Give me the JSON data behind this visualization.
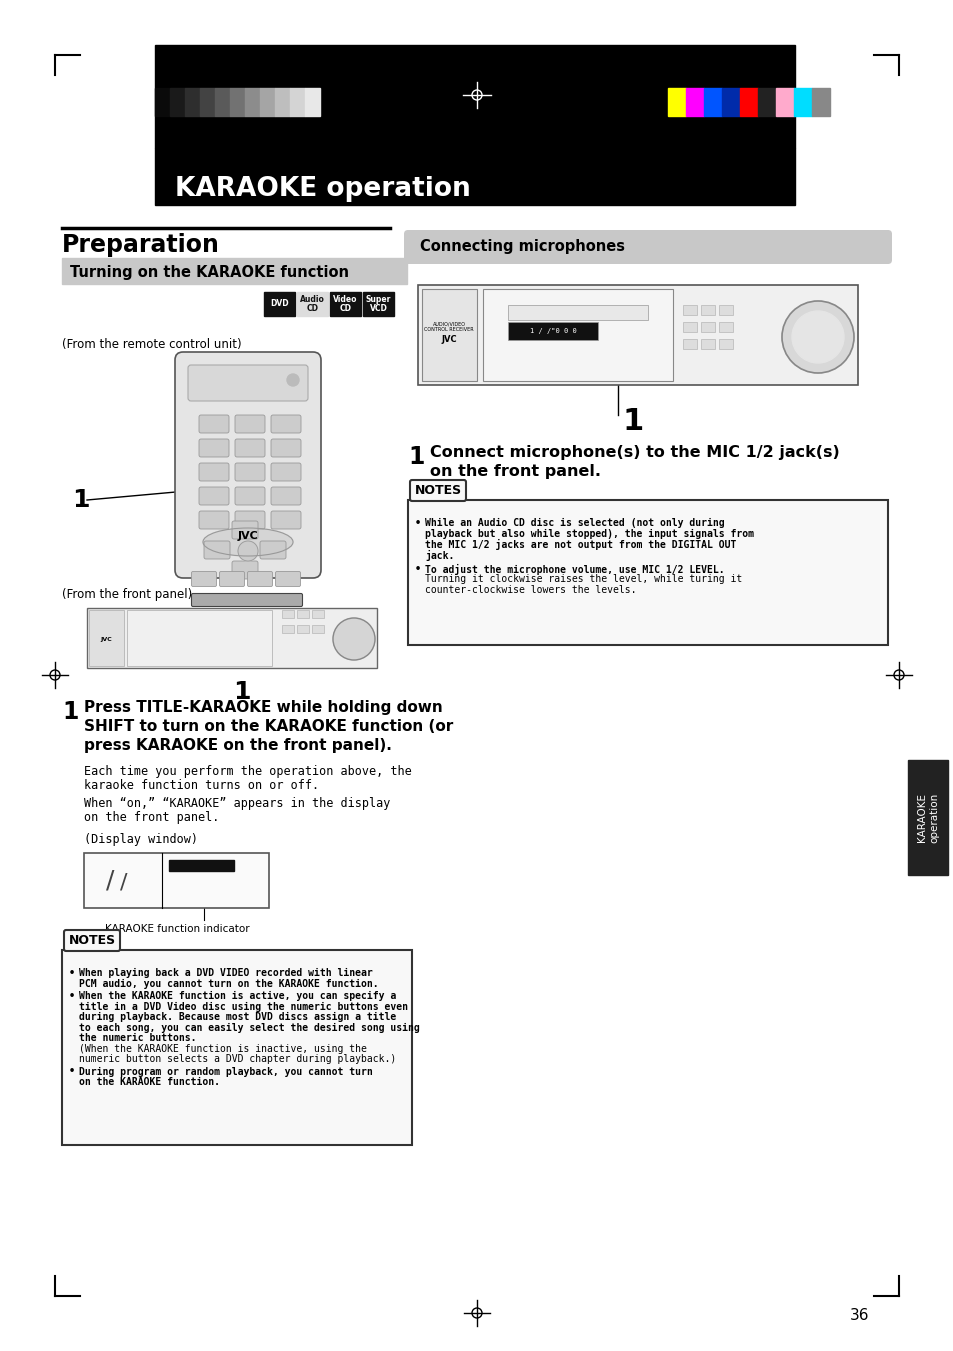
{
  "page_bg": "#ffffff",
  "header_text": "KARAOKE operation",
  "prep_title": "Preparation",
  "section1_title": "Turning on the KARAOKE function",
  "section2_title": "Connecting microphones",
  "from_remote_text": "(From the remote control unit)",
  "from_front_text": "(From the front panel)",
  "display_window_text": "(Display window)",
  "karaoke_indicator_text": "KARAOKE function indicator",
  "step1_bold": "Press TITLE-KARAOKE while holding down\nSHIFT to turn on the KARAOKE function (or\npress KARAOKE on the front panel).",
  "step1_sub1": "Each time you perform the operation above, the\nkaraoke function turns on or off.",
  "step1_sub2": "When “on,” “KARAOKE” appears in the display\non the front panel.",
  "step1_right_bold": "Connect microphone(s) to the MIC 1/2 jack(s)",
  "step1_right_normal": "on the front panel.",
  "notes_title": "NOTES",
  "notes_left_1_bold": "When playing back a DVD VIDEO recorded with linear\nPCM audio, you cannot turn on the KARAOKE function.",
  "notes_left_2_bold": "When the KARAOKE function is active, you can specify a\ntitle in a DVD Video disc using the numeric buttons even\nduring playback. Because most DVD discs assign a title\nto each song, you can easily select the desired song using\nthe numeric buttons.",
  "notes_left_2_normal": "(When the KARAOKE function is inactive, using the\nnumeric button selects a DVD chapter during playback.)",
  "notes_left_3_bold": "During program or random playback, you cannot turn\non the KARAOKE function.",
  "notes_right_1_bold": "While an Audio CD disc is selected (not only during\nplayback but also while stopped), the input signals from\nthe MIC 1/2 jacks are not output from the DIGITAL OUT\njack.",
  "notes_right_2_bold": "To adjust the microphone volume, use MIC 1/2 LEVEL.",
  "notes_right_2_normal": "Turning it clockwise raises the level, while turing it\ncounter-clockwise lowers the levels.",
  "page_number": "36",
  "karaoke_tab": "KARAOKE\noperation",
  "gs_colors": [
    "#0a0a0a",
    "#1a1a1a",
    "#2e2e2e",
    "#434343",
    "#5a5a5a",
    "#727272",
    "#8c8c8c",
    "#a5a5a5",
    "#bebebe",
    "#d4d4d4",
    "#e8e8e8"
  ],
  "color_bars": [
    "#ffff00",
    "#ff00ff",
    "#0055ff",
    "#002baa",
    "#ff0000",
    "#222222",
    "#ffaacc",
    "#00ddff",
    "#888888"
  ]
}
